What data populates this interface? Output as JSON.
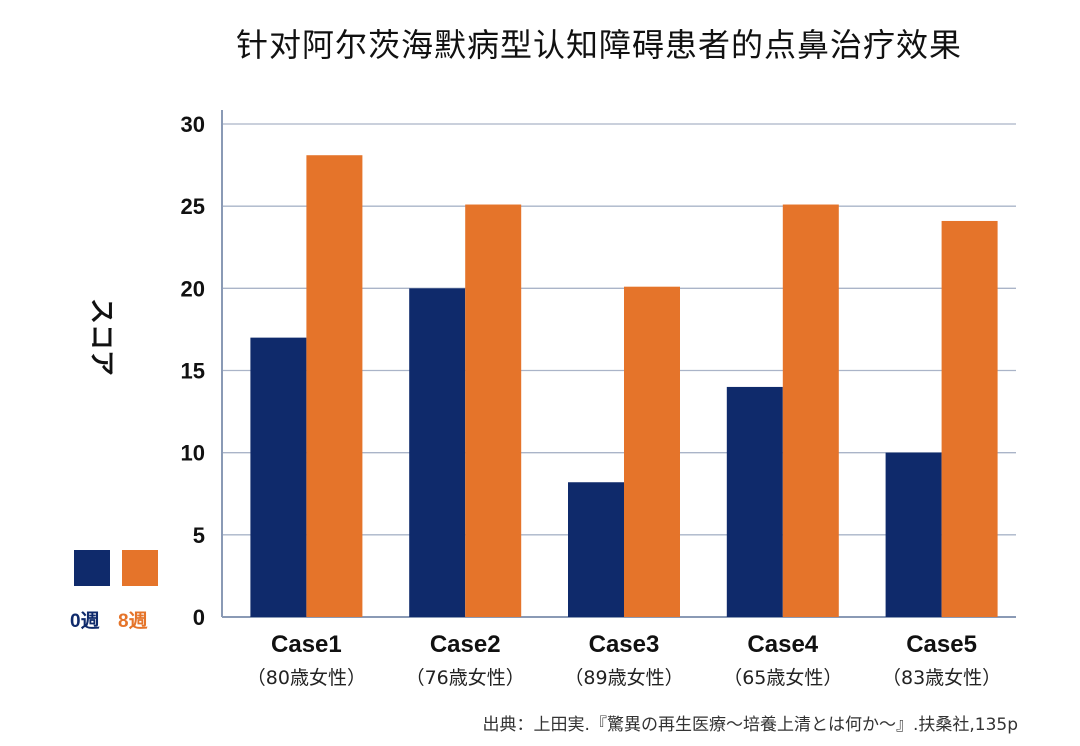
{
  "title": "针对阿尔茨海默病型认知障碍患者的点鼻治疗效果",
  "chart_data": {
    "type": "bar",
    "title": "针对阿尔茨海默病型认知障碍患者的点鼻治疗效果",
    "ylabel": "スコア",
    "xlabel": "",
    "ylim": [
      0,
      30
    ],
    "yticks": [
      0,
      5,
      10,
      15,
      20,
      25,
      30
    ],
    "grid": true,
    "categories": [
      "Case1",
      "Case2",
      "Case3",
      "Case4",
      "Case5"
    ],
    "category_sublabels": [
      "（80歳女性）",
      "（76歳女性）",
      "（89歳女性）",
      "（65歳女性）",
      "（83歳女性）"
    ],
    "series": [
      {
        "name": "0週",
        "color": "#0f2a6b",
        "values": [
          17,
          20,
          8.2,
          14,
          10
        ]
      },
      {
        "name": "8週",
        "color": "#e5742a",
        "values": [
          28.1,
          25.1,
          20.1,
          25.1,
          24.1
        ]
      }
    ],
    "legend_placement": "bottom-left"
  },
  "source_note": "出典：上田実.『驚異の再生医療〜培養上清とは何か〜』.扶桑社,135p"
}
